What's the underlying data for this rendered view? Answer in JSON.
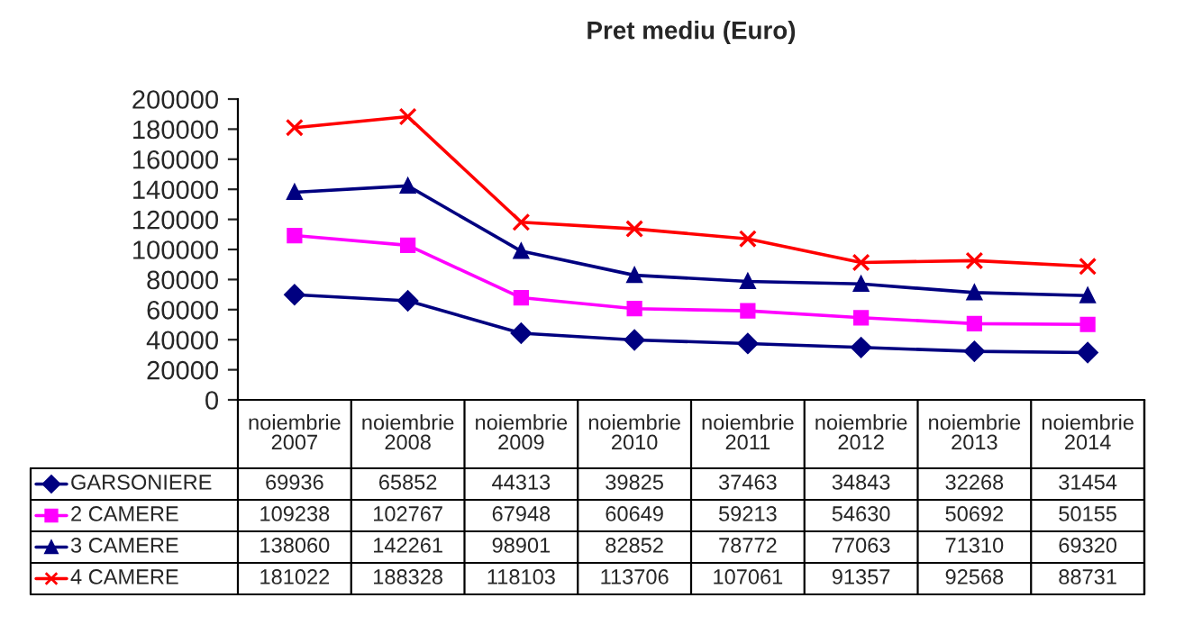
{
  "chart_data": {
    "type": "line",
    "title": "Pret mediu (Euro)",
    "categories": [
      "noiembrie\n2007",
      "noiembrie\n2008",
      "noiembrie\n2009",
      "noiembrie\n2010",
      "noiembrie\n2011",
      "noiembrie\n2012",
      "noiembrie\n2013",
      "noiembrie\n2014"
    ],
    "series": [
      {
        "name": "GARSONIERE",
        "color": "#000080",
        "marker": "diamond",
        "values": [
          69936,
          65852,
          44313,
          39825,
          37463,
          34843,
          32268,
          31454
        ]
      },
      {
        "name": "2 CAMERE",
        "color": "#ff00ff",
        "marker": "square",
        "values": [
          109238,
          102767,
          67948,
          60649,
          59213,
          54630,
          50692,
          50155
        ]
      },
      {
        "name": "3 CAMERE",
        "color": "#000080",
        "marker": "triangle",
        "values": [
          138060,
          142261,
          98901,
          82852,
          78772,
          77063,
          71310,
          69320
        ]
      },
      {
        "name": "4 CAMERE",
        "color": "#ff0000",
        "marker": "cross",
        "values": [
          181022,
          188328,
          118103,
          113706,
          107061,
          91357,
          92568,
          88731
        ]
      }
    ],
    "ylim": [
      0,
      200000
    ],
    "yticks": [
      0,
      20000,
      40000,
      60000,
      80000,
      100000,
      120000,
      140000,
      160000,
      180000,
      200000
    ],
    "grid": false,
    "legend": "bottom",
    "data_labels": true
  }
}
